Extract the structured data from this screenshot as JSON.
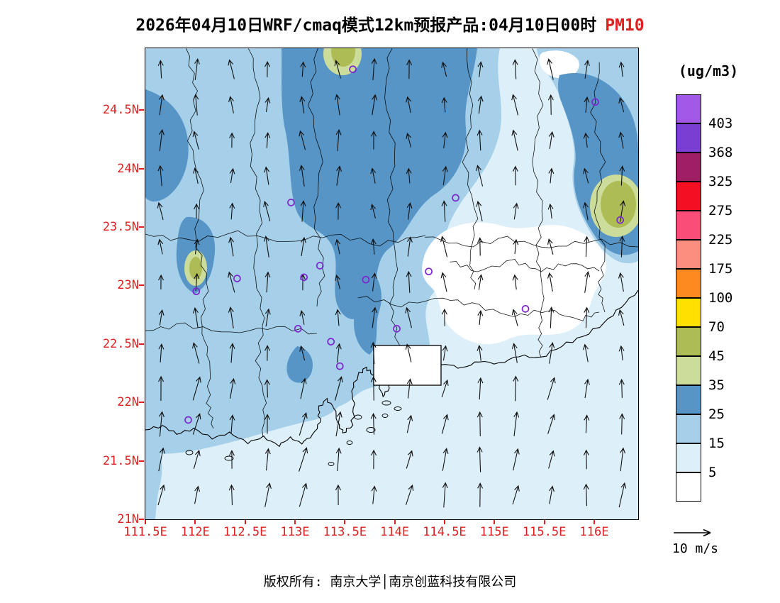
{
  "title": {
    "text": "2026年04月10日WRF/cmaq模式12km预报产品:04月10日00时",
    "species": "PM10",
    "species_color": "#E02020"
  },
  "axes": {
    "lat_labels": [
      "24.5N",
      "24N",
      "23.5N",
      "23N",
      "22.5N",
      "22N",
      "21.5N",
      "21N"
    ],
    "lon_labels": [
      "111.5E",
      "112E",
      "112.5E",
      "113E",
      "113.5E",
      "114E",
      "114.5E",
      "115E",
      "115.5E",
      "116E"
    ],
    "label_color": "#E02020"
  },
  "colorbar": {
    "unit": "(ug/m3)",
    "tick_labels_top_to_bottom": [
      "403",
      "368",
      "325",
      "275",
      "225",
      "175",
      "100",
      "70",
      "45",
      "35",
      "25",
      "15",
      "5"
    ]
  },
  "wind_legend": {
    "label": "10 m/s"
  },
  "footer": {
    "text": "版权所有: 南京大学│南京创蓝科技有限公司"
  },
  "chart_data": {
    "type": "heatmap",
    "title": "2026年04月10日WRF/cmaq模式12km预报产品:04月10日00时 PM10",
    "variable": "PM10",
    "unit": "ug/m3",
    "lon_range": [
      111.5,
      116.44
    ],
    "lat_range": [
      21.0,
      25.03
    ],
    "contour_levels": [
      5,
      15,
      25,
      35,
      45,
      70,
      100,
      175,
      225,
      275,
      325,
      368,
      403
    ],
    "palette_low_to_high": [
      "#FFFFFF",
      "#DDEFF9",
      "#A6D0EA",
      "#5795C7",
      "#CBDC9B",
      "#AEBC55",
      "#FFE000",
      "#FC8A20",
      "#FB8E7E",
      "#FA4E78",
      "#F50F22",
      "#9E1F63",
      "#7B3ED2",
      "#A259E6"
    ],
    "value_summary": "PM10 mostly 5-35 ug/m3: 25-35 band over northern/central area and the northeast; small 35-70 patches near 113.47E/24.98N, 115.95E/23.75N and 112.0E/23.15N; below 5 over the east-central region (about 114.3-116.2E, 22.6-23.5N); light southerly winds around 5-10 m/s shown by arrows.",
    "station_marker_color": "#7D26CD",
    "stations_lonlat": [
      [
        113.58,
        24.85
      ],
      [
        116.01,
        24.57
      ],
      [
        112.96,
        23.71
      ],
      [
        114.61,
        23.75
      ],
      [
        116.26,
        23.56
      ],
      [
        112.01,
        22.95
      ],
      [
        112.42,
        23.06
      ],
      [
        113.09,
        23.07
      ],
      [
        113.25,
        23.17
      ],
      [
        113.71,
        23.05
      ],
      [
        114.34,
        23.12
      ],
      [
        115.31,
        22.8
      ],
      [
        113.03,
        22.63
      ],
      [
        113.36,
        22.52
      ],
      [
        114.02,
        22.63
      ],
      [
        113.45,
        22.31
      ],
      [
        111.93,
        21.85
      ]
    ],
    "wind_reference": {
      "speed": 10,
      "unit": "m/s"
    }
  }
}
